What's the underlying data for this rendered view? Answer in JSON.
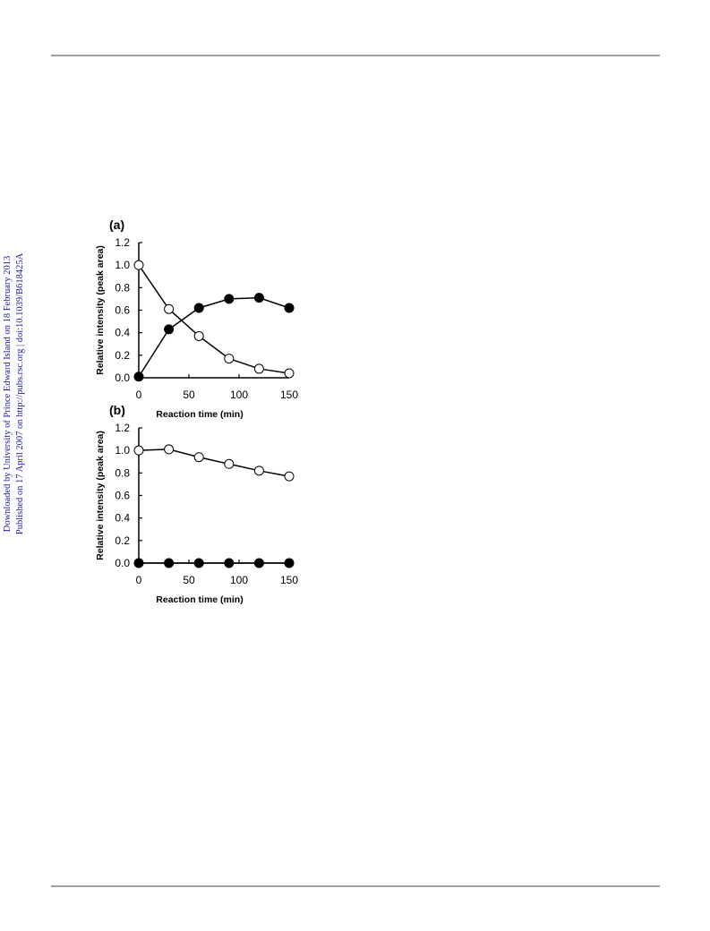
{
  "sidebar": [
    "Downloaded by University of Prince Edward Island on 18 February 2013",
    "Published on 17 April 2007 on http://pubs.rsc.org | doi:10.1039/B618425A"
  ],
  "chart_data": [
    {
      "type": "line",
      "title": "(a)",
      "xlabel": "Reaction time (min)",
      "ylabel": "Relative intensity (peak area)",
      "x": [
        0,
        30,
        60,
        90,
        120,
        150
      ],
      "series": [
        {
          "color": "#000000",
          "marker_fill": "#ffffff",
          "values": [
            1.0,
            0.61,
            0.37,
            0.17,
            0.08,
            0.04
          ]
        },
        {
          "color": "#000000",
          "marker_fill": "#000000",
          "values": [
            0.01,
            0.43,
            0.62,
            0.7,
            0.71,
            0.62
          ]
        }
      ],
      "xlim": [
        0,
        150
      ],
      "xticks": [
        0,
        50,
        100,
        150
      ],
      "ylim": [
        0,
        1.2
      ],
      "yticks": [
        {
          "value": 0,
          "label": "0.0"
        },
        0.2,
        0.4,
        0.6,
        0.8,
        {
          "value": 1,
          "label": "1.0"
        },
        1.2
      ]
    },
    {
      "type": "line",
      "title": "(b)",
      "xlabel": "Reaction time (min)",
      "ylabel": "Relative intensity (peak area)",
      "x": [
        0,
        30,
        60,
        90,
        120,
        150
      ],
      "series": [
        {
          "color": "#000000",
          "marker_fill": "#ffffff",
          "values": [
            1.0,
            1.01,
            0.94,
            0.88,
            0.82,
            0.77
          ]
        },
        {
          "color": "#000000",
          "marker_fill": "#000000",
          "values": [
            0,
            0,
            0,
            0,
            0,
            0
          ]
        }
      ],
      "xlim": [
        0,
        150
      ],
      "xticks": [
        0,
        50,
        100,
        150
      ],
      "ylim": [
        0,
        1.2
      ],
      "yticks": [
        {
          "value": 0,
          "label": "0.0"
        },
        0.2,
        0.4,
        0.6,
        0.8,
        {
          "value": 1,
          "label": "1.0"
        },
        1.2
      ]
    }
  ]
}
